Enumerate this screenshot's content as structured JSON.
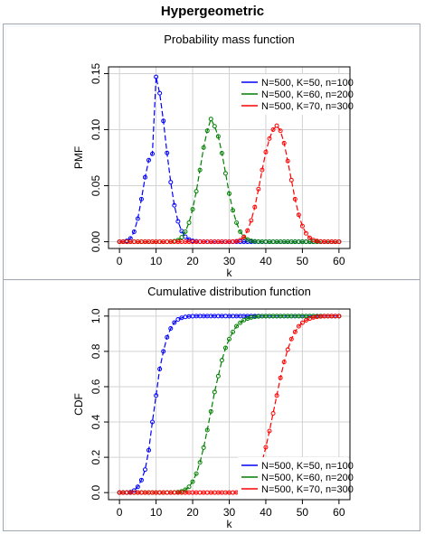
{
  "page": {
    "title": "Hypergeometric"
  },
  "chart_data": [
    {
      "type": "line",
      "title": "Probability mass function",
      "xlabel": "k",
      "ylabel": "PMF",
      "xlim": [
        -3,
        63
      ],
      "ylim": [
        -0.006,
        0.156
      ],
      "xticks": [
        "0",
        "10",
        "20",
        "30",
        "40",
        "50",
        "60"
      ],
      "yticks": [
        "0.00",
        "0.05",
        "0.10",
        "0.15"
      ],
      "grid": true,
      "legend_position": "top-right",
      "x": [
        0,
        1,
        2,
        3,
        4,
        5,
        6,
        7,
        8,
        9,
        10,
        11,
        12,
        13,
        14,
        15,
        16,
        17,
        18,
        19,
        20,
        21,
        22,
        23,
        24,
        25,
        26,
        27,
        28,
        29,
        30,
        31,
        32,
        33,
        34,
        35,
        36,
        37,
        38,
        39,
        40,
        41,
        42,
        43,
        44,
        45,
        46,
        47,
        48,
        49,
        50,
        51,
        52,
        53,
        54,
        55,
        56,
        57,
        58,
        59,
        60
      ],
      "series": [
        {
          "name": "N=500, K=50, n=100",
          "color": "#0000ff",
          "values": [
            1e-05,
            0.00011,
            0.0007,
            0.00295,
            0.0089,
            0.02061,
            0.03803,
            0.05752,
            0.07277,
            0.0784,
            0.147,
            0.1325,
            0.1078,
            0.0792,
            0.0531,
            0.0325,
            0.0182,
            0.0094,
            0.0045,
            0.002,
            0.0008,
            0.0003,
            0.0001,
            3e-05,
            1e-05,
            0,
            0,
            0,
            0,
            0,
            0,
            0,
            0,
            0,
            0,
            0,
            0,
            0,
            0,
            0,
            0,
            0,
            0,
            0,
            0,
            0,
            0,
            0,
            0,
            0,
            0,
            0,
            0,
            0,
            0,
            0,
            0,
            0,
            0,
            0,
            0
          ]
        },
        {
          "name": "N=500, K=60, n=200",
          "color": "#008000",
          "values": [
            0,
            0,
            0,
            0,
            0,
            0,
            0,
            0,
            0,
            0,
            0,
            0,
            0,
            2e-05,
            0.0001,
            0.0004,
            0.0014,
            0.004,
            0.009,
            0.017,
            0.029,
            0.045,
            0.064,
            0.084,
            0.099,
            0.1095,
            0.103,
            0.094,
            0.079,
            0.061,
            0.043,
            0.028,
            0.017,
            0.009,
            0.0045,
            0.002,
            0.0008,
            0.0003,
            0.0001,
            3e-05,
            1e-05,
            0,
            0,
            0,
            0,
            0,
            0,
            0,
            0,
            0,
            0,
            0,
            0,
            0,
            0,
            0,
            0,
            0,
            0,
            0,
            0
          ]
        },
        {
          "name": "N=500, K=70, n=300",
          "color": "#ff0000",
          "values": [
            0,
            0,
            0,
            0,
            0,
            0,
            0,
            0,
            0,
            0,
            0,
            0,
            0,
            0,
            0,
            0,
            0,
            0,
            0,
            0,
            0,
            0,
            0,
            0,
            0,
            0,
            0,
            0,
            0,
            0,
            2e-05,
            0.0001,
            0.0004,
            0.0014,
            0.0042,
            0.01,
            0.019,
            0.031,
            0.047,
            0.064,
            0.08,
            0.092,
            0.1,
            0.1035,
            0.099,
            0.088,
            0.072,
            0.055,
            0.038,
            0.024,
            0.014,
            0.0075,
            0.0035,
            0.0015,
            0.0006,
            0.0002,
            7e-05,
            2e-05,
            1e-05,
            0,
            0
          ]
        }
      ]
    },
    {
      "type": "line",
      "title": "Cumulative distribution function",
      "xlabel": "k",
      "ylabel": "CDF",
      "xlim": [
        -3,
        63
      ],
      "ylim": [
        -0.04,
        1.04
      ],
      "xticks": [
        "0",
        "10",
        "20",
        "30",
        "40",
        "50",
        "60"
      ],
      "yticks": [
        "0.0",
        "0.2",
        "0.4",
        "0.6",
        "0.8",
        "1.0"
      ],
      "grid": true,
      "legend_position": "bottom-right",
      "x": [
        0,
        1,
        2,
        3,
        4,
        5,
        6,
        7,
        8,
        9,
        10,
        11,
        12,
        13,
        14,
        15,
        16,
        17,
        18,
        19,
        20,
        21,
        22,
        23,
        24,
        25,
        26,
        27,
        28,
        29,
        30,
        31,
        32,
        33,
        34,
        35,
        36,
        37,
        38,
        39,
        40,
        41,
        42,
        43,
        44,
        45,
        46,
        47,
        48,
        49,
        50,
        51,
        52,
        53,
        54,
        55,
        56,
        57,
        58,
        59,
        60
      ],
      "series": [
        {
          "name": "N=500, K=50, n=100",
          "color": "#0000ff",
          "values": [
            0.0,
            0.0,
            0.0,
            0.003,
            0.012,
            0.033,
            0.071,
            0.13,
            0.24,
            0.4,
            0.55,
            0.7,
            0.8,
            0.88,
            0.93,
            0.963,
            0.981,
            0.99,
            0.995,
            0.998,
            0.999,
            1.0,
            1.0,
            1.0,
            1.0,
            1.0,
            1.0,
            1.0,
            1.0,
            1.0,
            1.0,
            1.0,
            1.0,
            1.0,
            1.0,
            1.0,
            1.0,
            1.0,
            1.0,
            1.0,
            1.0,
            1.0,
            1.0,
            1.0,
            1.0,
            1.0,
            1.0,
            1.0,
            1.0,
            1.0,
            1.0,
            1.0,
            1.0,
            1.0,
            1.0,
            1.0,
            1.0,
            1.0,
            1.0,
            1.0,
            1.0
          ]
        },
        {
          "name": "N=500, K=60, n=200",
          "color": "#008000",
          "values": [
            0,
            0,
            0,
            0,
            0,
            0,
            0,
            0,
            0,
            0,
            0,
            0,
            0,
            0.0,
            0.0,
            0.001,
            0.003,
            0.007,
            0.016,
            0.033,
            0.062,
            0.107,
            0.171,
            0.255,
            0.354,
            0.46,
            0.57,
            0.66,
            0.75,
            0.82,
            0.87,
            0.91,
            0.943,
            0.962,
            0.977,
            0.986,
            0.992,
            0.996,
            0.998,
            0.999,
            1.0,
            1.0,
            1.0,
            1.0,
            1.0,
            1.0,
            1.0,
            1.0,
            1.0,
            1.0,
            1.0,
            1.0,
            1.0,
            1.0,
            1.0,
            1.0,
            1.0,
            1.0,
            1.0,
            1.0,
            1.0
          ]
        },
        {
          "name": "N=500, K=70, n=300",
          "color": "#ff0000",
          "values": [
            0,
            0,
            0,
            0,
            0,
            0,
            0,
            0,
            0,
            0,
            0,
            0,
            0,
            0,
            0,
            0,
            0,
            0,
            0,
            0,
            0,
            0,
            0,
            0,
            0,
            0,
            0,
            0,
            0,
            0,
            0.0,
            0.0,
            0.001,
            0.002,
            0.006,
            0.016,
            0.035,
            0.066,
            0.113,
            0.177,
            0.257,
            0.349,
            0.449,
            0.55,
            0.65,
            0.74,
            0.81,
            0.87,
            0.91,
            0.942,
            0.962,
            0.976,
            0.986,
            0.992,
            0.996,
            0.998,
            0.999,
            1.0,
            1.0,
            1.0,
            1.0
          ]
        }
      ]
    }
  ]
}
